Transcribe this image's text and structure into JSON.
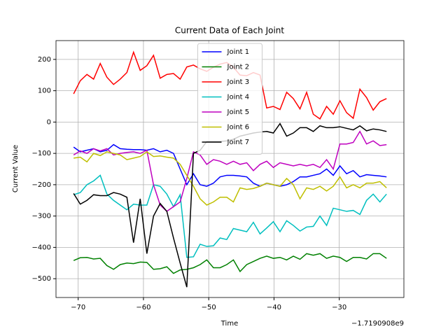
{
  "chart_data": {
    "type": "line",
    "title": "Current Data of Each Joint",
    "x_label": "Time",
    "y_label": "Current Value",
    "x_offset_label": "−1.7190908e9",
    "x": [
      -70.7,
      -69.68,
      -68.66,
      -67.64,
      -66.62,
      -65.6,
      -64.58,
      -63.56,
      -62.54,
      -61.52,
      -60.5,
      -59.48,
      -58.46,
      -57.44,
      -56.42,
      -55.4,
      -54.38,
      -53.36,
      -52.34,
      -51.32,
      -50.3,
      -49.28,
      -48.26,
      -47.24,
      -46.22,
      -45.2,
      -44.18,
      -43.16,
      -42.14,
      -41.12,
      -40.1,
      -39.08,
      -38.06,
      -37.04,
      -36.02,
      -35.0,
      -33.98,
      -32.96,
      -31.94,
      -30.92,
      -29.9,
      -28.88,
      -27.86,
      -26.84,
      -25.82,
      -24.8,
      -23.78,
      -22.76
    ],
    "series": [
      {
        "name": "Joint 1",
        "color": "#0000ff",
        "values": [
          -80,
          -95,
          -90,
          -85,
          -95,
          -90,
          -72,
          -85,
          -87,
          -88,
          -88,
          -90,
          -85,
          -95,
          -90,
          -100,
          -150,
          -200,
          -165,
          -200,
          -205,
          -195,
          -175,
          -170,
          -170,
          -172,
          -175,
          -195,
          -205,
          -195,
          -200,
          -205,
          -200,
          -190,
          -175,
          -175,
          -170,
          -165,
          -150,
          -170,
          -140,
          -165,
          -155,
          -175,
          -168,
          -170,
          -172,
          -175
        ]
      },
      {
        "name": "Joint 2",
        "color": "#008000",
        "values": [
          -442,
          -433,
          -432,
          -437,
          -435,
          -458,
          -470,
          -455,
          -450,
          -452,
          -447,
          -448,
          -470,
          -468,
          -462,
          -483,
          -472,
          -470,
          -465,
          -455,
          -440,
          -465,
          -465,
          -455,
          -440,
          -477,
          -455,
          -445,
          -435,
          -428,
          -435,
          -432,
          -440,
          -428,
          -438,
          -420,
          -425,
          -420,
          -435,
          -428,
          -432,
          -445,
          -432,
          -432,
          -437,
          -420,
          -420,
          -435
        ]
      },
      {
        "name": "Joint 3",
        "color": "#ff0000",
        "values": [
          90,
          132,
          152,
          137,
          187,
          143,
          120,
          137,
          158,
          223,
          165,
          180,
          213,
          140,
          152,
          155,
          137,
          176,
          182,
          170,
          162,
          175,
          185,
          190,
          175,
          150,
          148,
          158,
          150,
          45,
          50,
          40,
          95,
          75,
          42,
          95,
          25,
          10,
          50,
          25,
          68,
          30,
          12,
          105,
          78,
          38,
          65,
          75
        ]
      },
      {
        "name": "Joint 4",
        "color": "#00bfbf",
        "values": [
          -232,
          -225,
          -200,
          -188,
          -170,
          -230,
          -250,
          -265,
          -280,
          -262,
          -265,
          -265,
          -200,
          -205,
          -230,
          -270,
          -232,
          -432,
          -430,
          -390,
          -397,
          -395,
          -370,
          -375,
          -340,
          -345,
          -350,
          -320,
          -357,
          -338,
          -318,
          -350,
          -315,
          -330,
          -348,
          -335,
          -333,
          -300,
          -330,
          -275,
          -280,
          -285,
          -282,
          -295,
          -250,
          -230,
          -255,
          -230
        ]
      },
      {
        "name": "Joint 5",
        "color": "#bf00bf",
        "values": [
          -105,
          -92,
          -100,
          -85,
          -92,
          -85,
          -105,
          -100,
          -97,
          -95,
          -100,
          -90,
          -200,
          -265,
          -285,
          -270,
          -255,
          -180,
          -95,
          -105,
          -135,
          -120,
          -125,
          -135,
          -125,
          -135,
          -130,
          -155,
          -135,
          -125,
          -145,
          -130,
          -135,
          -140,
          -135,
          -140,
          -135,
          -145,
          -120,
          -150,
          -70,
          -70,
          -65,
          -30,
          -70,
          -60,
          -75,
          -72
        ]
      },
      {
        "name": "Joint 6",
        "color": "#bfbf00",
        "values": [
          -115,
          -112,
          -127,
          -100,
          -107,
          -95,
          -100,
          -105,
          -120,
          -115,
          -110,
          -95,
          -110,
          -108,
          -112,
          -115,
          -135,
          -170,
          -205,
          -245,
          -265,
          -255,
          -240,
          -240,
          -255,
          -210,
          -215,
          -212,
          -205,
          -195,
          -200,
          -205,
          -180,
          -200,
          -245,
          -210,
          -215,
          -205,
          -220,
          -205,
          -175,
          -210,
          -200,
          -210,
          -195,
          -195,
          -190,
          -210
        ]
      },
      {
        "name": "Joint 7",
        "color": "#000000",
        "values": [
          -228,
          -262,
          -250,
          -232,
          -235,
          -235,
          -225,
          -230,
          -240,
          -385,
          -245,
          -420,
          -300,
          -260,
          -285,
          -370,
          -450,
          -527,
          -100,
          -90,
          -62,
          -62,
          -62,
          -60,
          -55,
          -45,
          -40,
          -35,
          -32,
          -30,
          -35,
          -5,
          -45,
          -35,
          -18,
          -18,
          -30,
          -12,
          -18,
          -18,
          -15,
          -20,
          -25,
          -12,
          -28,
          -22,
          -25,
          -30
        ]
      }
    ],
    "xlim": [
      -73.4,
      -20.1
    ],
    "ylim": [
      -560,
      260
    ],
    "xticks": [
      {
        "value": -70,
        "label": "−70"
      },
      {
        "value": -60,
        "label": "−60"
      },
      {
        "value": -50,
        "label": "−50"
      },
      {
        "value": -40,
        "label": "−40"
      },
      {
        "value": -30,
        "label": "−30"
      }
    ],
    "yticks": [
      {
        "value": -500,
        "label": "−500"
      },
      {
        "value": -400,
        "label": "−400"
      },
      {
        "value": -300,
        "label": "−300"
      },
      {
        "value": -200,
        "label": "−200"
      },
      {
        "value": -100,
        "label": "−100"
      },
      0,
      100,
      200
    ],
    "grid": true,
    "legend": "upper center"
  }
}
